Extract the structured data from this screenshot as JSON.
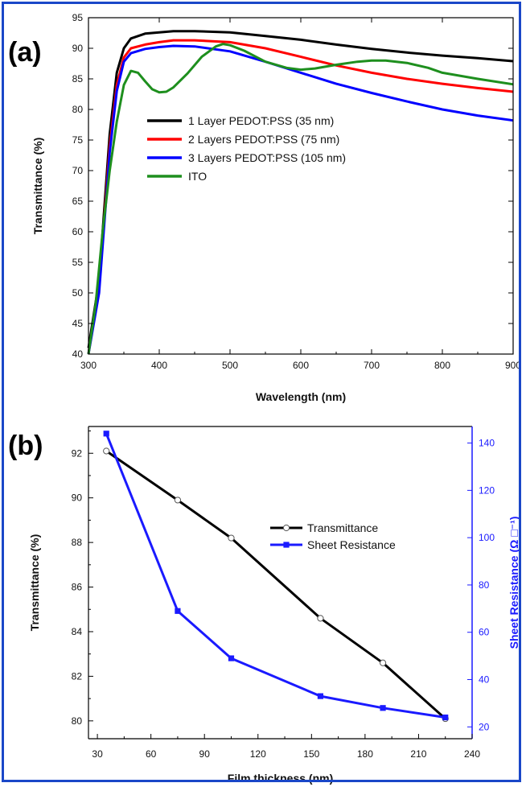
{
  "chart_data": [
    {
      "type": "line",
      "panel_label": "(a)",
      "xlabel": "Wavelength (nm)",
      "ylabel": "Transmittance (%)",
      "xlim": [
        300,
        900
      ],
      "ylim": [
        40,
        95
      ],
      "xticks": [
        300,
        400,
        500,
        600,
        700,
        800,
        900
      ],
      "yticks": [
        40,
        45,
        50,
        55,
        60,
        65,
        70,
        75,
        80,
        85,
        90,
        95
      ],
      "legend_position": "center",
      "series": [
        {
          "name": "1 Layer PEDOT:PSS (35 nm)",
          "color": "#000000",
          "points": [
            [
              300,
              41
            ],
            [
              315,
              52
            ],
            [
              330,
              76
            ],
            [
              340,
              86
            ],
            [
              350,
              90
            ],
            [
              360,
              91.6
            ],
            [
              380,
              92.4
            ],
            [
              400,
              92.6
            ],
            [
              420,
              92.8
            ],
            [
              450,
              92.8
            ],
            [
              500,
              92.6
            ],
            [
              550,
              92.0
            ],
            [
              600,
              91.4
            ],
            [
              650,
              90.6
            ],
            [
              700,
              89.9
            ],
            [
              750,
              89.3
            ],
            [
              800,
              88.8
            ],
            [
              850,
              88.4
            ],
            [
              900,
              87.9
            ]
          ]
        },
        {
          "name": "2 Layers PEDOT:PSS (75 nm)",
          "color": "#ff0000",
          "points": [
            [
              300,
              40
            ],
            [
              315,
              51
            ],
            [
              330,
              74
            ],
            [
              340,
              84
            ],
            [
              350,
              88.5
            ],
            [
              360,
              90.0
            ],
            [
              380,
              90.6
            ],
            [
              400,
              91.0
            ],
            [
              420,
              91.3
            ],
            [
              450,
              91.3
            ],
            [
              500,
              91.0
            ],
            [
              550,
              90.0
            ],
            [
              600,
              88.6
            ],
            [
              650,
              87.2
            ],
            [
              700,
              86.0
            ],
            [
              750,
              85.0
            ],
            [
              800,
              84.2
            ],
            [
              850,
              83.5
            ],
            [
              900,
              82.9
            ]
          ]
        },
        {
          "name": "3 Layers PEDOT:PSS (105 nm)",
          "color": "#0000ff",
          "points": [
            [
              300,
              40
            ],
            [
              315,
              50
            ],
            [
              330,
              73
            ],
            [
              340,
              83
            ],
            [
              350,
              87.8
            ],
            [
              360,
              89.2
            ],
            [
              380,
              89.9
            ],
            [
              400,
              90.2
            ],
            [
              420,
              90.4
            ],
            [
              450,
              90.3
            ],
            [
              500,
              89.5
            ],
            [
              550,
              87.8
            ],
            [
              600,
              86.0
            ],
            [
              650,
              84.2
            ],
            [
              700,
              82.7
            ],
            [
              750,
              81.3
            ],
            [
              800,
              80.0
            ],
            [
              850,
              79.0
            ],
            [
              900,
              78.2
            ]
          ]
        },
        {
          "name": "ITO",
          "color": "#1e8f1e",
          "points": [
            [
              300,
              40
            ],
            [
              310,
              48
            ],
            [
              320,
              60
            ],
            [
              330,
              70
            ],
            [
              340,
              78
            ],
            [
              350,
              84
            ],
            [
              360,
              86.3
            ],
            [
              370,
              86.0
            ],
            [
              380,
              84.6
            ],
            [
              390,
              83.3
            ],
            [
              400,
              82.8
            ],
            [
              410,
              82.9
            ],
            [
              420,
              83.6
            ],
            [
              440,
              85.9
            ],
            [
              460,
              88.6
            ],
            [
              480,
              90.3
            ],
            [
              490,
              90.7
            ],
            [
              500,
              90.5
            ],
            [
              520,
              89.6
            ],
            [
              550,
              87.8
            ],
            [
              580,
              86.8
            ],
            [
              600,
              86.5
            ],
            [
              620,
              86.7
            ],
            [
              650,
              87.3
            ],
            [
              680,
              87.8
            ],
            [
              700,
              88.0
            ],
            [
              720,
              88.0
            ],
            [
              750,
              87.6
            ],
            [
              780,
              86.8
            ],
            [
              800,
              86.0
            ],
            [
              850,
              85.0
            ],
            [
              900,
              84.1
            ]
          ]
        }
      ]
    },
    {
      "type": "line",
      "panel_label": "(b)",
      "xlabel": "Film thickness (nm)",
      "ylabel": "Transmittance (%)",
      "ylabel_right": "Sheet Resistance (Ω □⁻¹)",
      "xlim": [
        25,
        240
      ],
      "xticks": [
        30,
        60,
        90,
        120,
        150,
        180,
        210,
        240
      ],
      "ylim": [
        79.2,
        93.2
      ],
      "yticks": [
        80,
        82,
        84,
        86,
        88,
        90,
        92
      ],
      "ylim_right": [
        15,
        147
      ],
      "yticks_right": [
        20,
        40,
        60,
        80,
        100,
        120,
        140
      ],
      "legend_position": "center-right",
      "series": [
        {
          "name": "Transmittance",
          "axis": "left",
          "color": "#000000",
          "marker": "open-circle",
          "points": [
            [
              35,
              92.1
            ],
            [
              75,
              89.9
            ],
            [
              105,
              88.2
            ],
            [
              155,
              84.6
            ],
            [
              190,
              82.6
            ],
            [
              225,
              80.1
            ]
          ]
        },
        {
          "name": "Sheet Resistance",
          "axis": "right",
          "color": "#1a1aff",
          "marker": "filled-square",
          "points": [
            [
              35,
              144
            ],
            [
              75,
              69
            ],
            [
              105,
              49
            ],
            [
              155,
              33
            ],
            [
              190,
              28
            ],
            [
              225,
              24
            ]
          ]
        }
      ]
    }
  ],
  "colors": {
    "frame": "#1a47c8",
    "right_axis": "#1a1aff"
  }
}
